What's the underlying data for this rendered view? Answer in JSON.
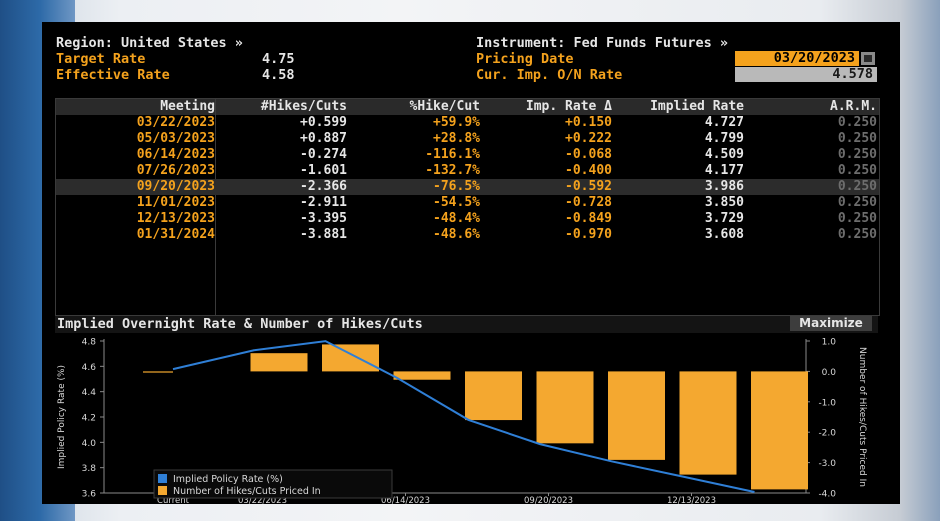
{
  "header": {
    "region_label": "Region: United States »",
    "target_rate_label": "Target Rate",
    "target_rate_value": "4.75",
    "effective_rate_label": "Effective Rate",
    "effective_rate_value": "4.58",
    "instrument_label": "Instrument: Fed Funds Futures »",
    "pricing_date_label": "Pricing Date",
    "pricing_date_value": "03/20/2023",
    "cur_imp_label": "Cur. Imp. O/N Rate",
    "cur_imp_value": "4.578"
  },
  "table": {
    "columns": [
      "Meeting",
      "#Hikes/Cuts",
      "%Hike/Cut",
      "Imp. Rate Δ",
      "Implied Rate",
      "A.R.M."
    ],
    "rows": [
      {
        "meeting": "03/22/2023",
        "hikes": "+0.599",
        "pct": "+59.9%",
        "delta": "+0.150",
        "implied": "4.727",
        "arm": "0.250"
      },
      {
        "meeting": "05/03/2023",
        "hikes": "+0.887",
        "pct": "+28.8%",
        "delta": "+0.222",
        "implied": "4.799",
        "arm": "0.250"
      },
      {
        "meeting": "06/14/2023",
        "hikes": "-0.274",
        "pct": "-116.1%",
        "delta": "-0.068",
        "implied": "4.509",
        "arm": "0.250"
      },
      {
        "meeting": "07/26/2023",
        "hikes": "-1.601",
        "pct": "-132.7%",
        "delta": "-0.400",
        "implied": "4.177",
        "arm": "0.250"
      },
      {
        "meeting": "09/20/2023",
        "hikes": "-2.366",
        "pct": "-76.5%",
        "delta": "-0.592",
        "implied": "3.986",
        "arm": "0.250"
      },
      {
        "meeting": "11/01/2023",
        "hikes": "-2.911",
        "pct": "-54.5%",
        "delta": "-0.728",
        "implied": "3.850",
        "arm": "0.250"
      },
      {
        "meeting": "12/13/2023",
        "hikes": "-3.395",
        "pct": "-48.4%",
        "delta": "-0.849",
        "implied": "3.729",
        "arm": "0.250"
      },
      {
        "meeting": "01/31/2024",
        "hikes": "-3.881",
        "pct": "-48.6%",
        "delta": "-0.970",
        "implied": "3.608",
        "arm": "0.250"
      }
    ]
  },
  "chart_header": {
    "title": "Implied Overnight Rate & Number of Hikes/Cuts",
    "maximize_label": "Maximize"
  },
  "colors": {
    "line": "#2f7fd6",
    "bar": "#f4a830",
    "orange_text": "#f4a21d"
  },
  "chart_data": {
    "type": "bar",
    "title": "Implied Overnight Rate & Number of Hikes/Cuts",
    "ylabel": "Implied Policy Rate (%)",
    "y2label": "Number of Hikes/Cuts Priced In",
    "ylim": [
      3.6,
      4.8
    ],
    "y2lim": [
      -4.0,
      1.0
    ],
    "yticks": [
      "4.8",
      "4.6",
      "4.4",
      "4.2",
      "4.0",
      "3.8",
      "3.6"
    ],
    "y2ticks": [
      "1.0",
      "0.0",
      "-1.0",
      "-2.0",
      "-3.0",
      "-4.0"
    ],
    "xticks": [
      "Current",
      "03/22/2023",
      "06/14/2023",
      "09/20/2023",
      "12/13/2023"
    ],
    "categories": [
      "Current",
      "03/22/2023",
      "05/03/2023",
      "06/14/2023",
      "07/26/2023",
      "09/20/2023",
      "11/01/2023",
      "12/13/2023",
      "01/31/2024"
    ],
    "legend_position": "bottom-left",
    "series": [
      {
        "name": "Implied Policy Rate (%)",
        "kind": "line",
        "axis": "left",
        "values": [
          4.578,
          4.727,
          4.799,
          4.509,
          4.177,
          3.986,
          3.85,
          3.729,
          3.608
        ]
      },
      {
        "name": "Number of Hikes/Cuts Priced In",
        "kind": "bar",
        "axis": "right",
        "values": [
          0.0,
          0.599,
          0.887,
          -0.274,
          -1.601,
          -2.366,
          -2.911,
          -3.395,
          -3.881
        ]
      }
    ]
  }
}
